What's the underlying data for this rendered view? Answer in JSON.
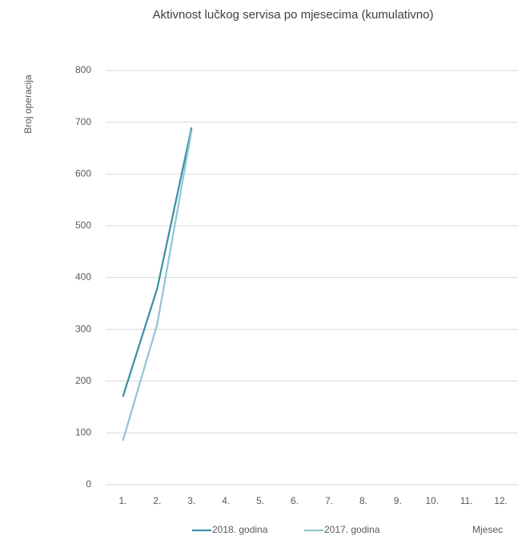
{
  "chart_data": {
    "type": "line",
    "title": "Aktivnost lučkog servisa po mjesecima (kumulativno)",
    "y_label": "Broj operacija",
    "x_label": "Mjesec",
    "categories": [
      "1.",
      "2.",
      "3.",
      "4.",
      "5.",
      "6.",
      "7.",
      "8.",
      "9.",
      "10.",
      "11.",
      "12."
    ],
    "series": [
      {
        "name": "2018. godina",
        "color": "#3b91a6",
        "values": [
          170,
          379,
          690,
          null,
          null,
          null,
          null,
          null,
          null,
          null,
          null,
          null
        ]
      },
      {
        "name": "2017. godina",
        "color": "#92c6d3",
        "values": [
          85,
          310,
          684,
          null,
          null,
          null,
          null,
          null,
          null,
          null,
          null,
          null
        ]
      }
    ],
    "ylim": [
      0,
      800
    ],
    "yticks": [
      0,
      100,
      200,
      300,
      400,
      500,
      600,
      700,
      800
    ],
    "grid": true,
    "legend": "bottom"
  }
}
